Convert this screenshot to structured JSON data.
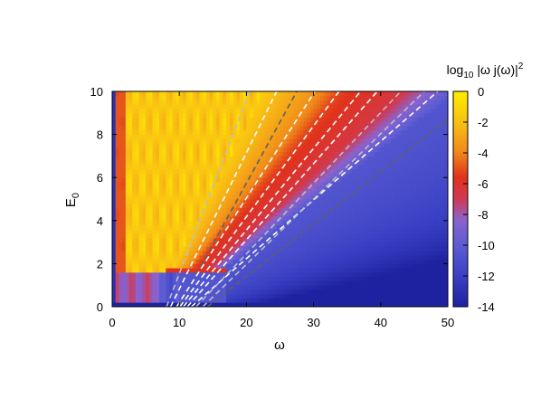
{
  "chart_data": {
    "type": "heatmap",
    "xlabel": "ω",
    "ylabel": "E",
    "ylabel_subscript": "0",
    "colorbar_label": "log",
    "colorbar_label_sub": "10",
    "colorbar_label_rest": " |ω j(ω)|",
    "colorbar_label_sup": "2",
    "xlim": [
      0,
      50
    ],
    "ylim": [
      0,
      10
    ],
    "zlim": [
      -14,
      0
    ],
    "x_ticks": [
      "0",
      "10",
      "20",
      "30",
      "40",
      "50"
    ],
    "y_ticks": [
      "0",
      "2",
      "4",
      "6",
      "8",
      "10"
    ],
    "colorbar_ticks": [
      "0",
      "-2",
      "-4",
      "-6",
      "-8",
      "-10",
      "-12",
      "-14"
    ],
    "colors": {
      "high": "#ffee00",
      "mid_high": "#f4a41c",
      "mid": "#d7251c",
      "mid_low": "#8a63cf",
      "low": "#2d35b6",
      "lowest": "#1e22a0"
    },
    "dashed_lines": [
      {
        "color": "#bfbfbf",
        "points": [
          [
            8.1,
            0
          ],
          [
            20.5,
            10
          ]
        ]
      },
      {
        "color": "#606060",
        "points": [
          [
            9.9,
            0
          ],
          [
            27.5,
            10
          ]
        ]
      },
      {
        "color": "#ffffff",
        "points": [
          [
            8.7,
            0
          ],
          [
            24.5,
            10
          ]
        ]
      },
      {
        "color": "#ffffff",
        "points": [
          [
            9.6,
            0
          ],
          [
            30.2,
            10
          ]
        ]
      },
      {
        "color": "#ffffff",
        "points": [
          [
            10.1,
            0
          ],
          [
            33.8,
            10
          ]
        ]
      },
      {
        "color": "#ffffff",
        "points": [
          [
            10.6,
            0
          ],
          [
            37.0,
            10
          ]
        ]
      },
      {
        "color": "#ffffff",
        "points": [
          [
            11.2,
            0
          ],
          [
            39.5,
            10
          ]
        ]
      },
      {
        "color": "#ffffff",
        "points": [
          [
            11.8,
            0
          ],
          [
            48.5,
            10
          ]
        ]
      },
      {
        "color": "#bfbfbf",
        "points": [
          [
            12.5,
            0
          ],
          [
            43.0,
            10
          ]
        ]
      },
      {
        "color": "#bfbfbf",
        "points": [
          [
            13.5,
            0
          ],
          [
            46.5,
            10
          ]
        ]
      },
      {
        "color": "#606060",
        "points": [
          [
            14.2,
            0
          ],
          [
            50.0,
            8.7
          ]
        ]
      }
    ]
  }
}
